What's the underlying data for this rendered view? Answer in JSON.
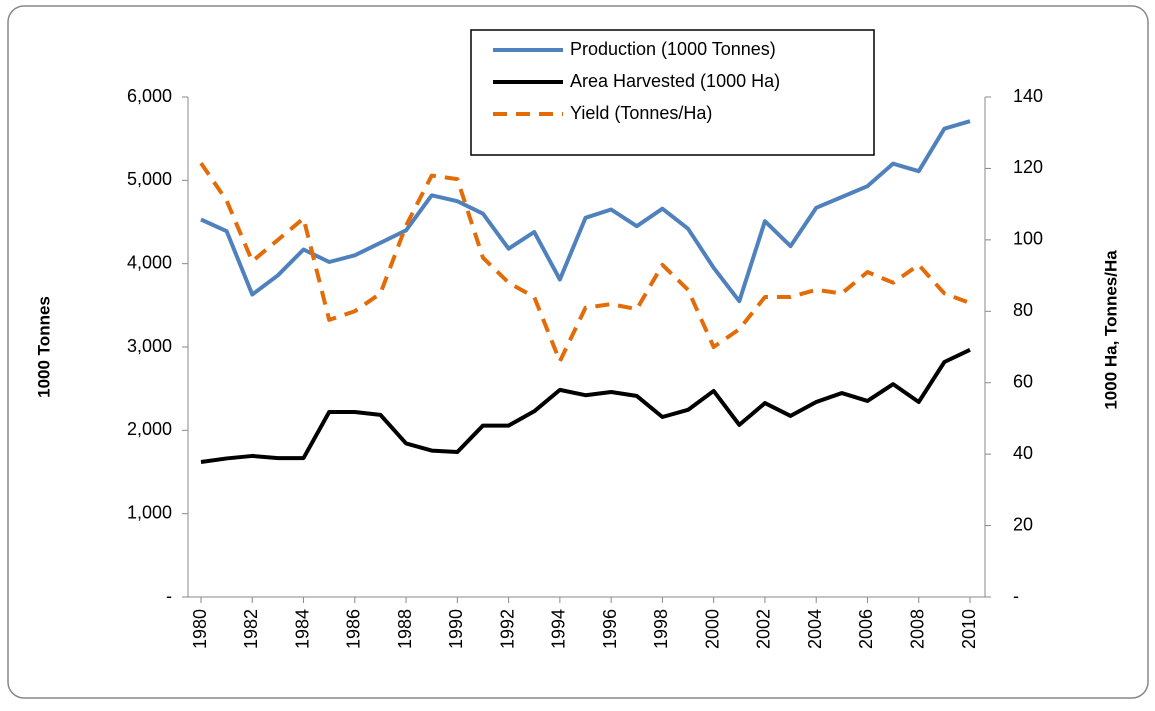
{
  "chart_data": {
    "type": "line",
    "y_label": "1000 Tonnes",
    "y2_label": "1000 Ha, Tonnes/Ha",
    "x": [
      1980,
      1981,
      1982,
      1983,
      1984,
      1985,
      1986,
      1987,
      1988,
      1989,
      1990,
      1991,
      1992,
      1993,
      1994,
      1995,
      1996,
      1997,
      1998,
      1999,
      2000,
      2001,
      2002,
      2003,
      2004,
      2005,
      2006,
      2007,
      2008,
      2009,
      2010
    ],
    "xlim": [
      1980,
      2010
    ],
    "xticks": [
      1980,
      1982,
      1984,
      1986,
      1988,
      1990,
      1992,
      1994,
      1996,
      1998,
      2000,
      2002,
      2004,
      2006,
      2008,
      2010
    ],
    "ylim": [
      0,
      6000
    ],
    "yticks": [
      {
        "value": 0,
        "label": "-"
      },
      {
        "value": 1000,
        "label": "1,000"
      },
      {
        "value": 2000,
        "label": "2,000"
      },
      {
        "value": 3000,
        "label": "3,000"
      },
      {
        "value": 4000,
        "label": "4,000"
      },
      {
        "value": 5000,
        "label": "5,000"
      },
      {
        "value": 6000,
        "label": "6,000"
      }
    ],
    "y2lim": [
      0,
      140
    ],
    "y2ticks": [
      {
        "value": 0,
        "label": "-"
      },
      20,
      40,
      60,
      80,
      100,
      120,
      140
    ],
    "legend": "top",
    "series": [
      {
        "name": "Production (1000 Tonnes)",
        "color": "#4f81bd",
        "line_style": "solid",
        "values": [
          4530,
          4390,
          3630,
          3860,
          4170,
          4020,
          4100,
          4250,
          4400,
          4820,
          4750,
          4600,
          4180,
          4380,
          3810,
          4550,
          4650,
          4450,
          4660,
          4420,
          3950,
          3550,
          4510,
          4210,
          4670,
          4800,
          4930,
          5200,
          5110,
          5620,
          5710
        ]
      },
      {
        "name": "Area Harvested (1000 Ha)",
        "color": "#000000",
        "line_style": "solid",
        "axis": "y2",
        "values": [
          37.8,
          38.8,
          39.5,
          38.9,
          38.9,
          51.8,
          51.8,
          51,
          43,
          41,
          40.6,
          48,
          48,
          52,
          58,
          56.5,
          57.4,
          56.3,
          50.4,
          52.4,
          57.7,
          48.2,
          54.3,
          50.7,
          54.6,
          57.1,
          54.9,
          59.6,
          54.6,
          65.8,
          69.2
        ]
      },
      {
        "name": "Yield (Tonnes/Ha)",
        "color": "#e36c09",
        "line_style": "dashed",
        "axis": "y2",
        "values": [
          121.5,
          111,
          94,
          100,
          106,
          77.6,
          80,
          85,
          104,
          118,
          117,
          95,
          88,
          84,
          66,
          81,
          82,
          80.6,
          93,
          86,
          70,
          75,
          84,
          84,
          86,
          85,
          91,
          88,
          93,
          85,
          82.3
        ]
      }
    ]
  }
}
